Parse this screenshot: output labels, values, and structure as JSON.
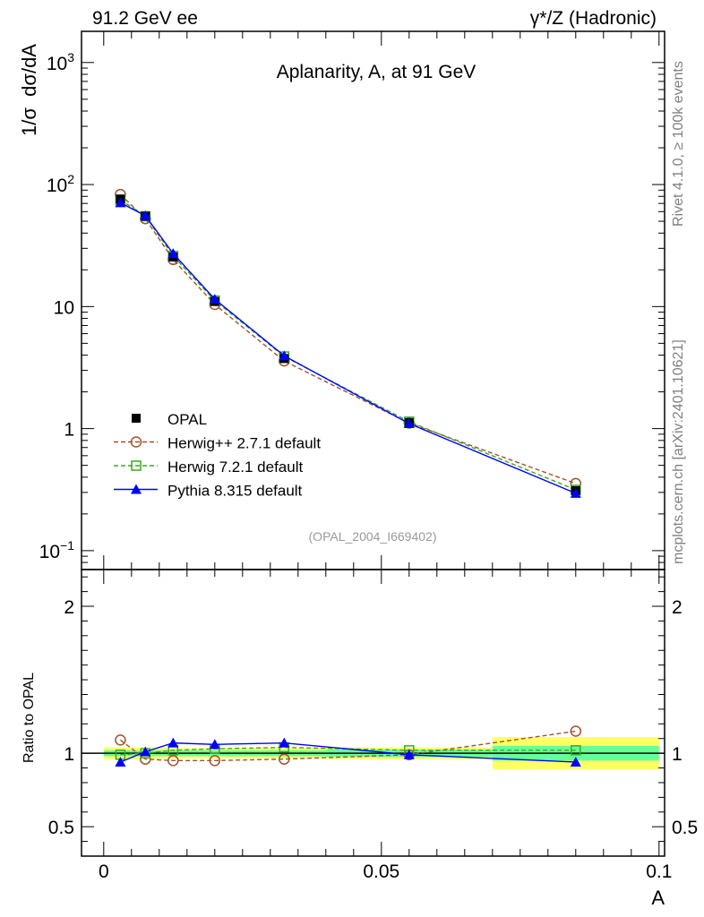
{
  "header": {
    "left": "91.2 GeV ee",
    "right_main": "γ*/Z (Hadronic)"
  },
  "side_text": {
    "top": "Rivet 4.1.0, ≥ 100k events",
    "bottom": "mcplots.cern.ch [arXiv:2401.10621]"
  },
  "colors": {
    "opal": "#000000",
    "herwigpp": "#a0522d",
    "herwig7": "#3aaa1e",
    "pythia": "#0000ff",
    "band_inner": "#66ff99",
    "band_outer": "#ffff66"
  },
  "chart_data": [
    {
      "type": "line",
      "title": "Aplanarity, A, at 91 GeV",
      "ylabel": "1/σ  dσ/dA",
      "yscale": "log",
      "xlim": [
        -0.004,
        0.101
      ],
      "ylim": [
        0.07,
        1800
      ],
      "y_ticks": [
        {
          "value": 0.1,
          "base": "10",
          "exp": "−1",
          "label": ""
        },
        {
          "value": 1,
          "base": "",
          "exp": "",
          "label": "1"
        },
        {
          "value": 10,
          "base": "",
          "exp": "",
          "label": "10"
        },
        {
          "value": 100,
          "base": "10",
          "exp": "2",
          "label": ""
        },
        {
          "value": 1000,
          "base": "10",
          "exp": "3",
          "label": ""
        }
      ],
      "x": [
        0.003,
        0.0075,
        0.0125,
        0.02,
        0.0325,
        0.055,
        0.085
      ],
      "series": [
        {
          "name": "OPAL",
          "key": "opal",
          "style": "data",
          "values": [
            76,
            55,
            25.5,
            11,
            3.75,
            1.12,
            0.31
          ]
        },
        {
          "name": "Herwig++ 2.7.1 default",
          "key": "herwigpp",
          "style": "circle-dashed",
          "values": [
            83,
            52.5,
            24.3,
            10.4,
            3.58,
            1.11,
            0.355
          ]
        },
        {
          "name": "Herwig 7.2.1 default",
          "key": "herwig7",
          "style": "square-dashed",
          "values": [
            75,
            55,
            26,
            11.2,
            3.9,
            1.14,
            0.315
          ]
        },
        {
          "name": "Pythia 8.315 default",
          "key": "pythia",
          "style": "triangle-solid",
          "values": [
            71,
            55.5,
            27.2,
            11.5,
            3.95,
            1.1,
            0.295
          ]
        }
      ],
      "legend": [
        {
          "label": "OPAL",
          "key": "opal",
          "style": "data"
        },
        {
          "label": "Herwig++ 2.7.1 default",
          "key": "herwigpp",
          "style": "circle-dashed"
        },
        {
          "label": "Herwig 7.2.1 default",
          "key": "herwig7",
          "style": "square-dashed"
        },
        {
          "label": "Pythia 8.315 default",
          "key": "pythia",
          "style": "triangle-solid"
        }
      ],
      "legend_position": "bottom-left",
      "annotation": "(OPAL_2004_I669402)"
    },
    {
      "type": "line",
      "title": "",
      "ylabel": "Ratio to OPAL",
      "xlabel": "A",
      "xlim": [
        -0.004,
        0.101
      ],
      "ylim": [
        0.3,
        2.25
      ],
      "y_ticks": [
        0.5,
        1,
        2
      ],
      "y_tick_labels": [
        "0.5",
        "1",
        "2"
      ],
      "x_ticks": [
        0,
        0.05,
        0.1
      ],
      "x_tick_labels": [
        "0",
        "0.05",
        "0.1"
      ],
      "x": [
        0.003,
        0.0075,
        0.0125,
        0.02,
        0.0325,
        0.055,
        0.085
      ],
      "bins": [
        [
          0,
          0.005
        ],
        [
          0.005,
          0.01
        ],
        [
          0.01,
          0.015
        ],
        [
          0.015,
          0.025
        ],
        [
          0.025,
          0.04
        ],
        [
          0.04,
          0.07
        ],
        [
          0.07,
          0.1
        ]
      ],
      "band_inner": [
        0.02,
        0.02,
        0.02,
        0.02,
        0.02,
        0.025,
        0.05
      ],
      "band_outer": [
        0.04,
        0.04,
        0.035,
        0.035,
        0.035,
        0.04,
        0.11
      ],
      "series": [
        {
          "name": "Herwig++ 2.7.1 default",
          "key": "herwigpp",
          "style": "circle-dashed",
          "values": [
            1.09,
            0.96,
            0.95,
            0.95,
            0.96,
            0.99,
            1.15
          ]
        },
        {
          "name": "Herwig 7.2.1 default",
          "key": "herwig7",
          "style": "square-dashed",
          "values": [
            0.99,
            1.0,
            1.02,
            1.03,
            1.04,
            1.02,
            1.02
          ]
        },
        {
          "name": "Pythia 8.315 default",
          "key": "pythia",
          "style": "triangle-solid",
          "values": [
            0.94,
            1.01,
            1.07,
            1.06,
            1.07,
            0.99,
            0.94
          ]
        }
      ]
    }
  ]
}
